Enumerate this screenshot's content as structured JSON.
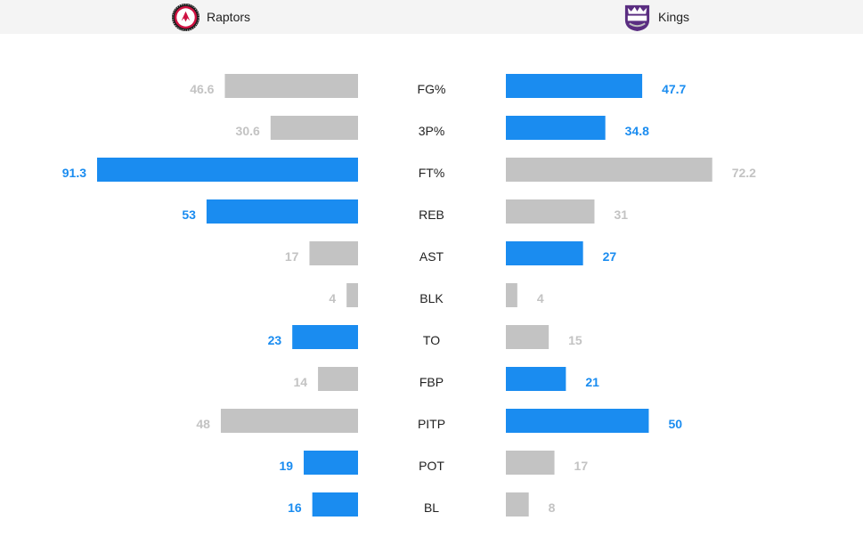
{
  "header": {
    "home_team": "Raptors",
    "away_team": "Kings",
    "home_logo_icon": "raptors-logo-icon",
    "away_logo_icon": "kings-logo-icon"
  },
  "colors": {
    "leader": "#1a8cf0",
    "trailer": "#c3c3c3",
    "leader_text": "#1a8cf0",
    "trailer_text": "#c3c3c3",
    "header_bg": "#f4f4f4"
  },
  "chart_data": {
    "type": "bar",
    "orientation": "horizontal-diverging",
    "categories": [
      "FG%",
      "3P%",
      "FT%",
      "REB",
      "AST",
      "BLK",
      "TO",
      "FBP",
      "PITP",
      "POT",
      "BL"
    ],
    "series": [
      {
        "name": "Raptors",
        "values": [
          46.6,
          30.6,
          91.3,
          53,
          17,
          4,
          23,
          14,
          48,
          19,
          16
        ],
        "labels": [
          "46.6",
          "30.6",
          "91.3",
          "53",
          "17",
          "4",
          "23",
          "14",
          "48",
          "19",
          "16"
        ],
        "leader": [
          false,
          false,
          true,
          true,
          false,
          false,
          true,
          false,
          false,
          true,
          true
        ]
      },
      {
        "name": "Kings",
        "values": [
          47.7,
          34.8,
          72.2,
          31,
          27,
          4,
          15,
          21,
          50,
          17,
          8
        ],
        "labels": [
          "47.7",
          "34.8",
          "72.2",
          "31",
          "27",
          "4",
          "15",
          "21",
          "50",
          "17",
          "8"
        ],
        "leader": [
          true,
          true,
          false,
          false,
          true,
          false,
          false,
          true,
          true,
          false,
          false
        ]
      }
    ]
  }
}
